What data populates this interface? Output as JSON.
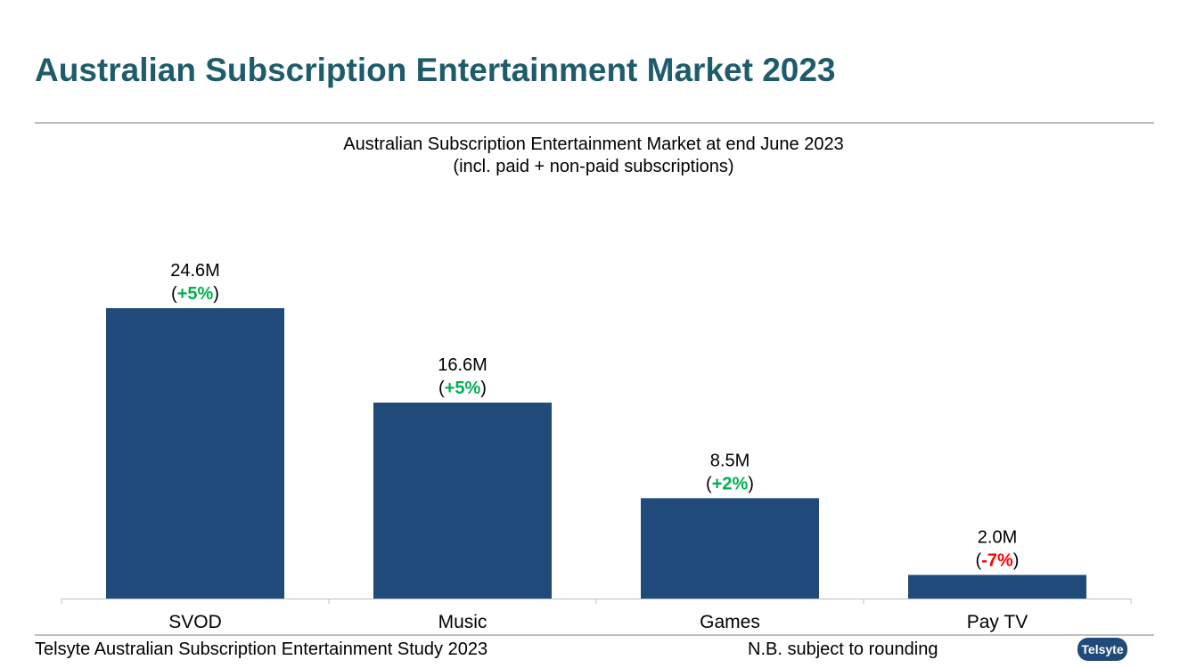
{
  "page": {
    "title": "Australian Subscription Entertainment Market 2023"
  },
  "colors": {
    "title": "#1f5c6b",
    "bar": "#1f4a7a",
    "positive": "#00b050",
    "negative": "#ff0000",
    "rule": "#bfbfbf"
  },
  "chart_data": {
    "type": "bar",
    "title": "Australian Subscription Entertainment Market at end June 2023",
    "subtitle": "(incl. paid + non-paid subscriptions)",
    "categories": [
      "SVOD",
      "Music",
      "Games",
      "Pay TV"
    ],
    "values": [
      24.6,
      16.6,
      8.5,
      2.0
    ],
    "value_labels": [
      "24.6M",
      "16.6M",
      "8.5M",
      "2.0M"
    ],
    "changes": [
      "+5%",
      "+5%",
      "+2%",
      "-7%"
    ],
    "units": "M",
    "xlabel": "",
    "ylabel": "",
    "ylim": [
      0,
      24.6
    ],
    "grid": false,
    "legend": "none"
  },
  "footer": {
    "source": "Telsyte Australian Subscription Entertainment Study 2023",
    "note": "N.B. subject to rounding",
    "logo_text": "Telsyte"
  }
}
